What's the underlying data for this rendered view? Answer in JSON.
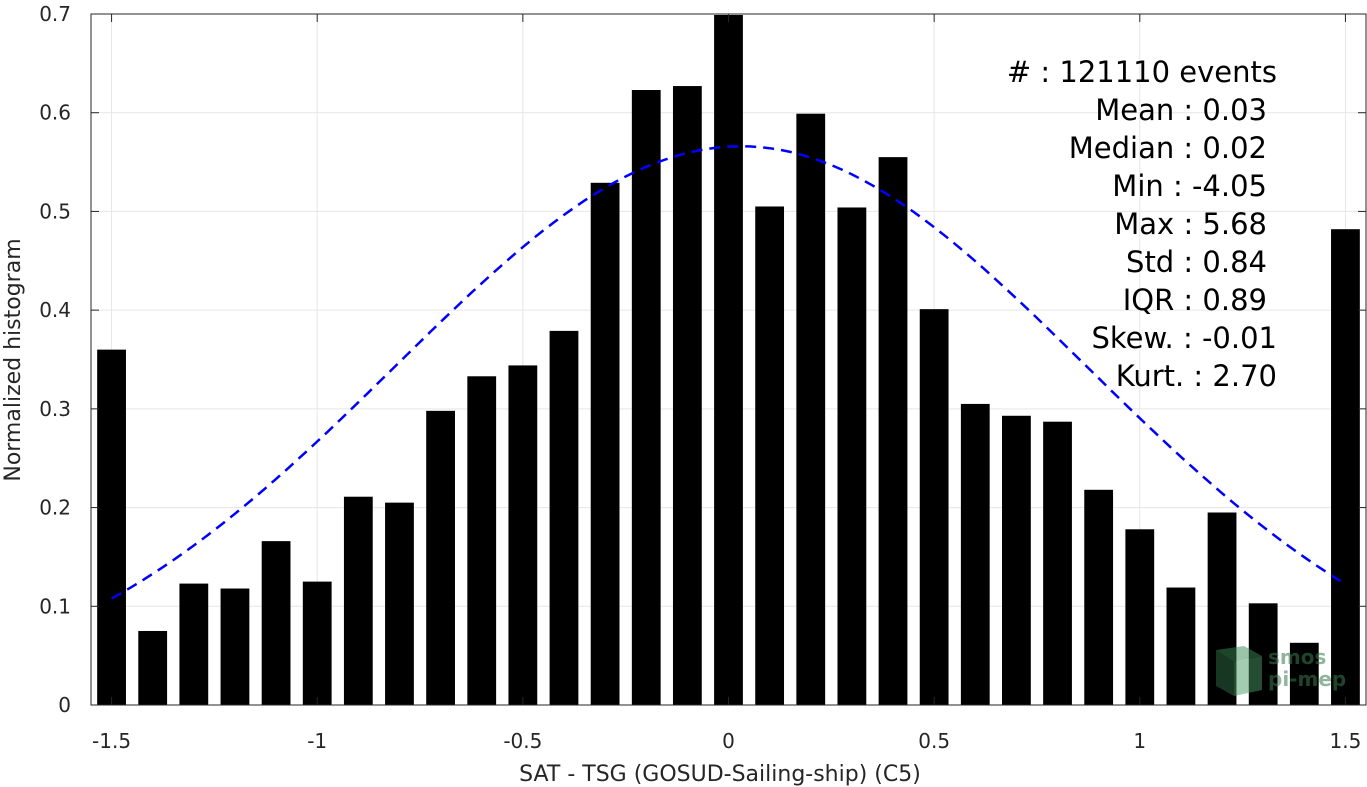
{
  "chart_data": {
    "type": "bar",
    "x": [
      -1.5,
      -1.4,
      -1.3,
      -1.2,
      -1.1,
      -1.0,
      -0.9,
      -0.8,
      -0.7,
      -0.6,
      -0.5,
      -0.4,
      -0.3,
      -0.2,
      -0.1,
      0.0,
      0.1,
      0.2,
      0.3,
      0.4,
      0.5,
      0.6,
      0.7,
      0.8,
      0.9,
      1.0,
      1.1,
      1.2,
      1.3,
      1.4,
      1.5
    ],
    "values": [
      0.36,
      0.075,
      0.123,
      0.118,
      0.166,
      0.125,
      0.211,
      0.205,
      0.298,
      0.333,
      0.344,
      0.379,
      0.529,
      0.623,
      0.627,
      0.699,
      0.505,
      0.599,
      0.504,
      0.555,
      0.401,
      0.305,
      0.293,
      0.287,
      0.218,
      0.178,
      0.119,
      0.195,
      0.103,
      0.063,
      0.482
    ],
    "fit_curve": {
      "type": "gaussian",
      "mean": 0.03,
      "std": 0.84,
      "peak": 0.566,
      "x_range": [
        -1.5,
        1.5
      ],
      "color": "#0000ff",
      "style": "dashed"
    },
    "xlabel": "SAT - TSG (GOSUD-Sailing-ship) (C5)",
    "ylabel": "Normalized histogram",
    "xlim": [
      -1.55,
      1.55
    ],
    "ylim": [
      0,
      0.7
    ],
    "xticks": [
      -1.5,
      -1,
      -0.5,
      0,
      0.5,
      1,
      1.5
    ],
    "xtick_labels": [
      "-1.5",
      "-1",
      "-0.5",
      "0",
      "0.5",
      "1",
      "1.5"
    ],
    "yticks": [
      0,
      0.1,
      0.2,
      0.3,
      0.4,
      0.5,
      0.6,
      0.7
    ],
    "ytick_labels": [
      "0",
      "0.1",
      "0.2",
      "0.3",
      "0.4",
      "0.5",
      "0.6",
      "0.7"
    ],
    "grid": true,
    "bar_color": "#000000"
  },
  "stats": [
    "#  : 121110 events",
    "Mean : 0.03",
    "Median : 0.02",
    "Min : -4.05",
    "Max : 5.68",
    "Std : 0.84",
    "IQR : 0.89",
    "Skew. : -0.01",
    "Kurt. : 2.70"
  ],
  "watermark": {
    "line1": "smos",
    "line2": "pi-mep"
  }
}
